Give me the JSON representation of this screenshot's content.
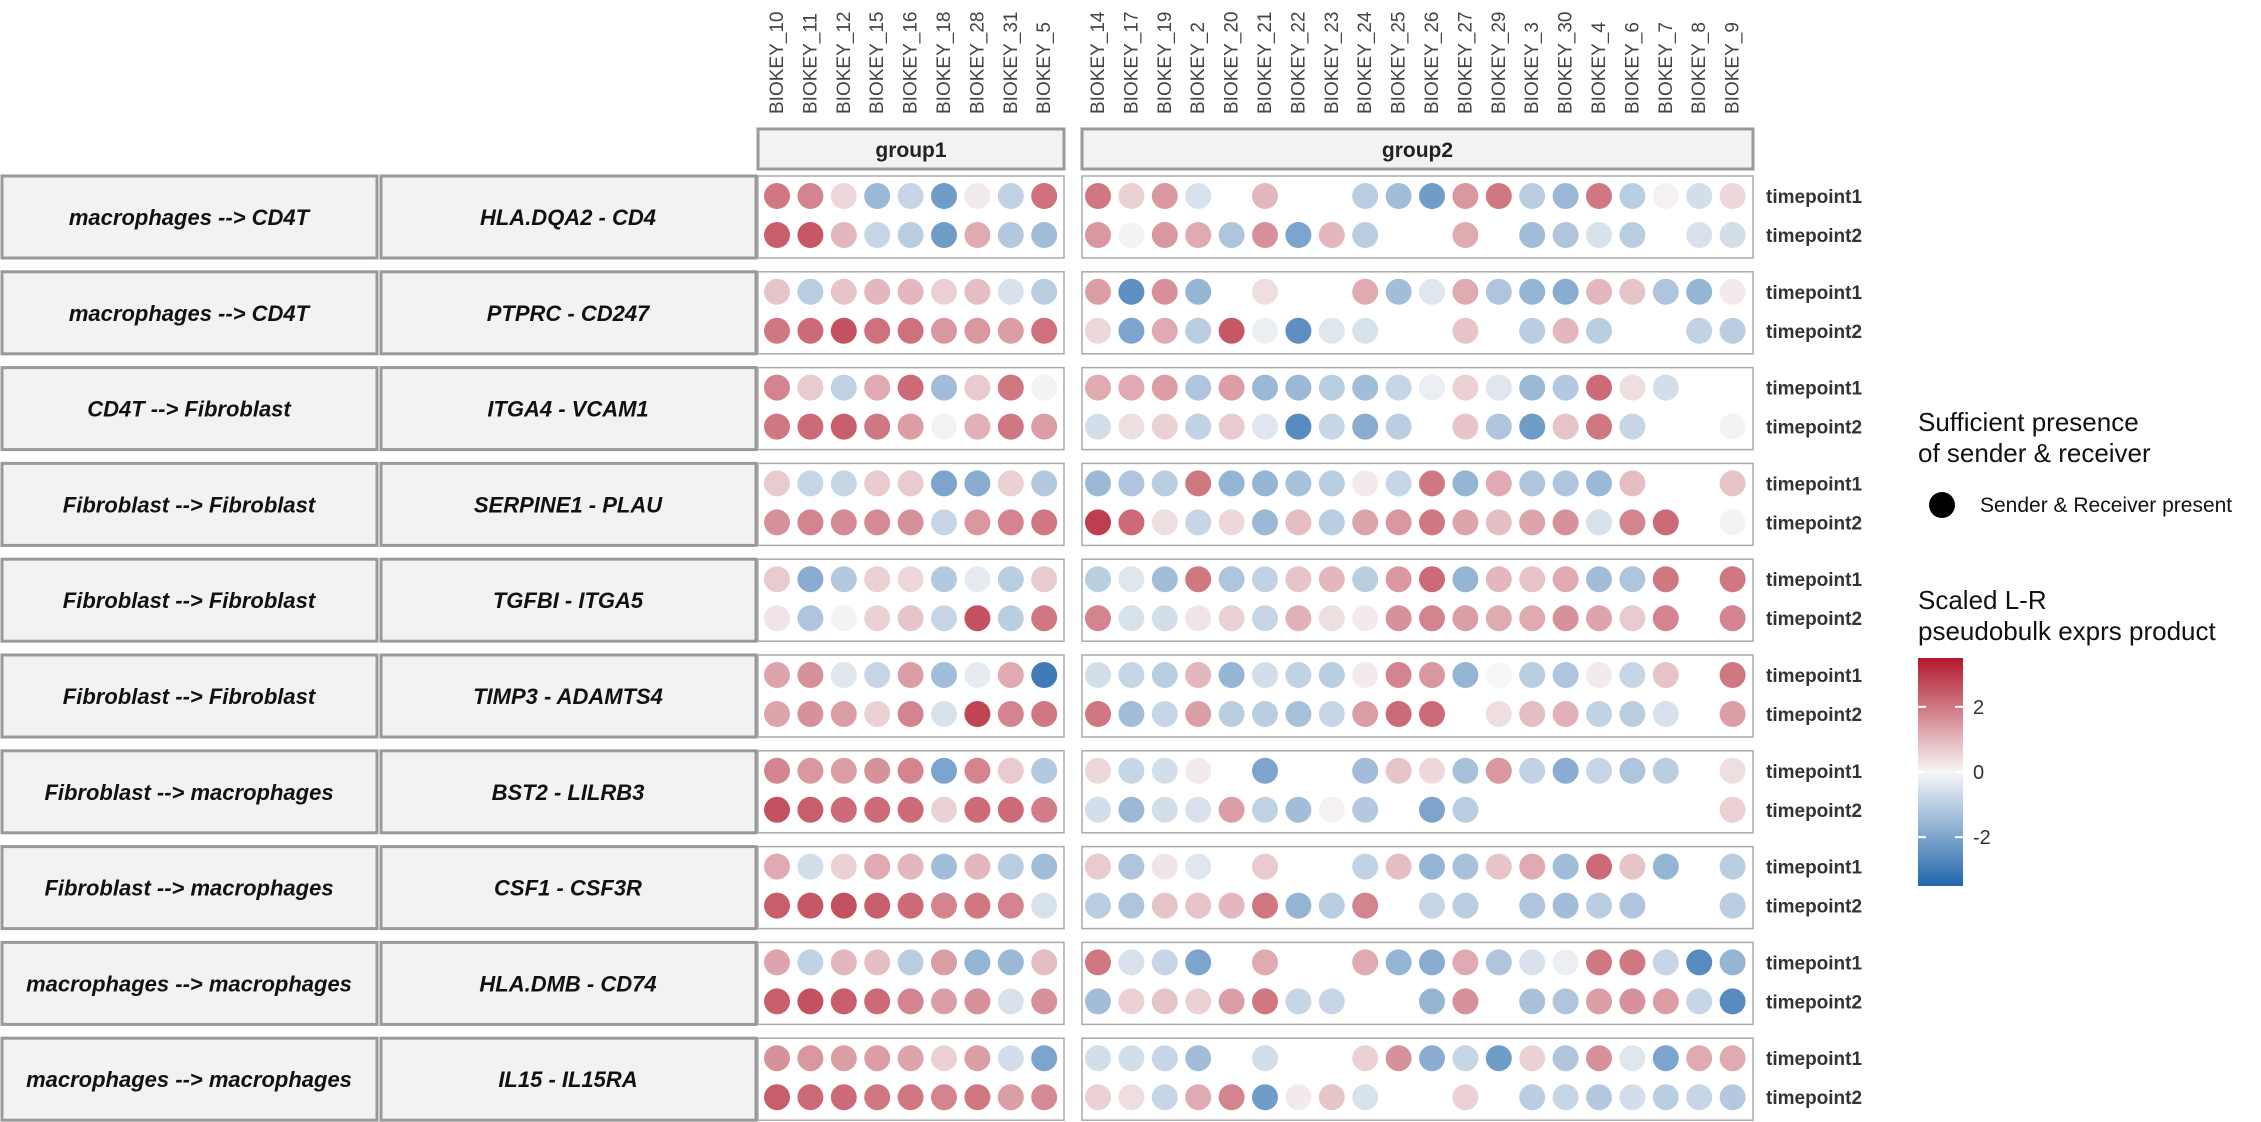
{
  "chart_data": {
    "type": "dotplot",
    "value_scale": "Scaled L-R pseudobulk exprs product (z-score)",
    "color_scale": {
      "low": "#2166ac",
      "mid": "#f7f7f7",
      "high": "#b2182b",
      "limits": [
        -3.5,
        3.5
      ],
      "ticks": [
        2,
        0,
        -2
      ]
    },
    "groups": [
      {
        "name": "group1",
        "samples": [
          "BIOKEY_10",
          "BIOKEY_11",
          "BIOKEY_12",
          "BIOKEY_15",
          "BIOKEY_16",
          "BIOKEY_18",
          "BIOKEY_28",
          "BIOKEY_31",
          "BIOKEY_5"
        ]
      },
      {
        "name": "group2",
        "samples": [
          "BIOKEY_14",
          "BIOKEY_17",
          "BIOKEY_19",
          "BIOKEY_2",
          "BIOKEY_20",
          "BIOKEY_21",
          "BIOKEY_22",
          "BIOKEY_23",
          "BIOKEY_24",
          "BIOKEY_25",
          "BIOKEY_26",
          "BIOKEY_27",
          "BIOKEY_29",
          "BIOKEY_3",
          "BIOKEY_30",
          "BIOKEY_4",
          "BIOKEY_6",
          "BIOKEY_7",
          "BIOKEY_8",
          "BIOKEY_9"
        ]
      }
    ],
    "timepoints": [
      "timepoint1",
      "timepoint2"
    ],
    "legend": {
      "presence_title_line1": "Sufficient presence",
      "presence_title_line2": "of sender & receiver",
      "presence_item": "Sender & Receiver present",
      "color_title_line1": "Scaled L-R",
      "color_title_line2": "pseudobulk exprs product",
      "placement": "right"
    },
    "rows": [
      {
        "sender_receiver": "macrophages --> CD4T",
        "pair": "HLA.DQA2 - CD4",
        "values": [
          [
            2.0,
            1.8,
            0.5,
            -1.5,
            -0.8,
            -2.2,
            0.2,
            -0.9,
            2.1,
            2.0,
            0.6,
            1.5,
            -0.5,
            null,
            1.0,
            null,
            null,
            -1.0,
            -1.4,
            -2.2,
            1.5,
            2.0,
            -1.0,
            -1.5,
            2.0,
            -1.0,
            0.1,
            -0.6,
            0.5
          ],
          [
            2.4,
            2.5,
            1.0,
            -0.8,
            -1.0,
            -2.2,
            1.2,
            -1.1,
            -1.4,
            1.5,
            -0.1,
            1.5,
            1.2,
            -1.2,
            1.6,
            -2.0,
            1.0,
            -1.0,
            null,
            null,
            1.2,
            null,
            -1.4,
            -1.2,
            -0.5,
            -1.0,
            null,
            -0.5,
            -0.6
          ]
        ]
      },
      {
        "sender_receiver": "macrophages --> CD4T",
        "pair": "PTPRC - CD247",
        "values": [
          [
            0.8,
            -1.0,
            0.8,
            1.0,
            1.0,
            0.6,
            0.9,
            -0.5,
            -1.0,
            1.4,
            -2.5,
            1.6,
            -1.6,
            null,
            0.4,
            null,
            null,
            1.2,
            -1.4,
            -0.4,
            1.2,
            -1.2,
            -1.6,
            -1.8,
            1.0,
            0.8,
            -1.2,
            -1.6,
            0.2
          ],
          [
            2.0,
            2.2,
            2.6,
            2.1,
            2.1,
            1.5,
            1.5,
            1.4,
            2.1,
            0.5,
            -2.0,
            1.2,
            -1.0,
            2.5,
            -0.2,
            -2.5,
            -0.4,
            -0.5,
            null,
            null,
            0.8,
            null,
            -1.0,
            1.0,
            -1.0,
            null,
            null,
            -0.9,
            -1.0
          ]
        ]
      },
      {
        "sender_receiver": "CD4T --> Fibroblast",
        "pair": "ITGA4 - VCAM1",
        "values": [
          [
            1.8,
            0.7,
            -0.9,
            1.2,
            2.2,
            -1.4,
            0.7,
            2.0,
            -0.1,
            1.2,
            1.2,
            1.4,
            -1.2,
            1.4,
            -1.5,
            -1.5,
            -1.0,
            -1.4,
            -0.8,
            -0.2,
            0.6,
            -0.4,
            -1.5,
            -1.1,
            2.2,
            0.4,
            -0.6,
            null,
            null
          ],
          [
            2.0,
            2.2,
            2.4,
            2.0,
            1.4,
            -0.1,
            1.1,
            2.0,
            1.4,
            -0.6,
            0.4,
            0.6,
            -0.9,
            0.7,
            -0.4,
            -2.6,
            -0.8,
            -1.8,
            -1.0,
            null,
            0.8,
            -1.2,
            -2.2,
            0.8,
            2.0,
            -0.8,
            null,
            null,
            -0.1
          ]
        ]
      },
      {
        "sender_receiver": "Fibroblast --> Fibroblast",
        "pair": "SERPINE1 - PLAU",
        "values": [
          [
            0.7,
            -0.8,
            -0.8,
            0.7,
            0.7,
            -2.0,
            -1.8,
            0.6,
            -1.1,
            -1.5,
            -1.2,
            -1.0,
            2.0,
            -1.6,
            -1.6,
            -1.3,
            -1.0,
            0.2,
            -0.8,
            2.0,
            -1.6,
            1.2,
            -1.2,
            -1.2,
            -1.5,
            0.9,
            null,
            null,
            0.8
          ],
          [
            1.6,
            1.8,
            1.7,
            1.7,
            1.6,
            -0.8,
            1.5,
            1.8,
            2.0,
            2.9,
            2.2,
            0.4,
            -0.8,
            0.5,
            -1.5,
            0.9,
            -1.0,
            1.3,
            1.5,
            2.0,
            1.3,
            0.9,
            1.3,
            1.6,
            -0.5,
            1.8,
            2.2,
            null,
            -0.1
          ]
        ]
      },
      {
        "sender_receiver": "Fibroblast --> Fibroblast",
        "pair": "TGFBI - ITGA5",
        "values": [
          [
            0.7,
            -1.8,
            -1.1,
            0.6,
            0.5,
            -1.1,
            -0.3,
            -1.0,
            0.7,
            -1.0,
            -0.4,
            -1.4,
            2.0,
            -1.2,
            -0.9,
            0.8,
            1.0,
            -1.0,
            1.5,
            2.2,
            -1.6,
            1.0,
            0.8,
            1.2,
            -1.4,
            -1.2,
            2.0,
            null,
            2.0
          ],
          [
            0.3,
            -1.2,
            -0.1,
            0.6,
            0.8,
            -0.8,
            2.6,
            -1.0,
            2.0,
            1.8,
            -0.5,
            -0.6,
            0.3,
            0.6,
            -0.8,
            1.1,
            0.4,
            0.2,
            1.6,
            1.8,
            1.4,
            1.2,
            1.2,
            1.6,
            1.3,
            0.7,
            1.8,
            null,
            1.8
          ]
        ]
      },
      {
        "sender_receiver": "Fibroblast --> Fibroblast",
        "pair": "TIMP3 - ADAMTS4",
        "values": [
          [
            1.3,
            1.6,
            -0.4,
            -0.8,
            1.4,
            -1.4,
            -0.3,
            1.2,
            -3.0,
            -0.6,
            -0.8,
            -1.0,
            1.0,
            -1.6,
            -0.6,
            -0.9,
            -1.0,
            0.2,
            1.8,
            1.5,
            -1.6,
            0.0,
            -1.0,
            -1.2,
            0.2,
            -0.8,
            0.8,
            null,
            2.0
          ],
          [
            1.3,
            1.6,
            1.4,
            0.6,
            1.8,
            -0.5,
            2.8,
            1.8,
            2.0,
            2.0,
            -1.4,
            -0.8,
            1.4,
            -1.0,
            -1.0,
            -1.3,
            -0.8,
            1.4,
            2.2,
            2.2,
            null,
            0.4,
            0.9,
            1.1,
            -0.9,
            -1.0,
            -0.5,
            null,
            1.4
          ]
        ]
      },
      {
        "sender_receiver": "Fibroblast --> macrophages",
        "pair": "BST2 - LILRB3",
        "values": [
          [
            1.8,
            1.5,
            1.4,
            1.6,
            1.8,
            -2.0,
            1.8,
            0.7,
            -1.1,
            0.5,
            -0.8,
            -0.6,
            0.2,
            null,
            -2.0,
            null,
            null,
            -1.4,
            0.8,
            0.5,
            -1.3,
            1.5,
            -0.9,
            -1.8,
            -0.8,
            -1.2,
            -1.0,
            null,
            0.4
          ],
          [
            2.6,
            2.4,
            2.2,
            2.2,
            2.2,
            0.6,
            2.2,
            2.2,
            1.9,
            -0.6,
            -1.5,
            -0.6,
            -0.5,
            1.4,
            -0.9,
            -1.4,
            0.1,
            -1.1,
            null,
            -2.0,
            -1.0,
            null,
            null,
            null,
            null,
            null,
            null,
            null,
            0.6
          ]
        ]
      },
      {
        "sender_receiver": "Fibroblast --> macrophages",
        "pair": "CSF1 - CSF3R",
        "values": [
          [
            1.2,
            -0.6,
            0.6,
            1.2,
            1.0,
            -1.4,
            1.0,
            -1.0,
            -1.4,
            0.7,
            -1.2,
            0.3,
            -0.4,
            null,
            0.7,
            null,
            null,
            -0.9,
            0.9,
            -1.6,
            -1.3,
            0.8,
            1.2,
            -1.4,
            2.2,
            0.8,
            -1.6,
            null,
            -1.0
          ],
          [
            2.4,
            2.5,
            2.6,
            2.4,
            2.2,
            1.8,
            2.0,
            1.8,
            -0.5,
            -1.0,
            -1.2,
            0.8,
            0.8,
            1.0,
            2.0,
            -1.6,
            -1.0,
            1.8,
            null,
            -0.8,
            -1.0,
            null,
            -1.2,
            -1.4,
            -1.0,
            -1.2,
            null,
            null,
            -1.0
          ]
        ]
      },
      {
        "sender_receiver": "macrophages --> macrophages",
        "pair": "HLA.DMB - CD74",
        "values": [
          [
            1.3,
            -0.9,
            1.0,
            0.9,
            -1.0,
            1.4,
            -1.6,
            -1.5,
            0.9,
            2.0,
            -0.5,
            -0.8,
            -2.0,
            null,
            1.2,
            null,
            null,
            1.2,
            -1.6,
            -1.8,
            1.2,
            -1.2,
            -0.5,
            -0.2,
            2.0,
            2.0,
            -0.8,
            -2.6,
            -1.6
          ],
          [
            2.4,
            2.6,
            2.4,
            2.2,
            1.8,
            1.4,
            1.6,
            -0.5,
            1.6,
            -1.4,
            0.6,
            0.8,
            0.6,
            1.4,
            2.0,
            -0.8,
            -0.8,
            null,
            null,
            -1.6,
            1.6,
            null,
            -1.3,
            -1.2,
            1.4,
            1.6,
            1.4,
            -0.8,
            -2.6
          ]
        ]
      },
      {
        "sender_receiver": "macrophages --> macrophages",
        "pair": "IL15 - IL15RA",
        "values": [
          [
            1.6,
            1.5,
            1.4,
            1.4,
            1.3,
            0.6,
            1.4,
            -0.6,
            -2.0,
            -0.6,
            -0.6,
            -0.8,
            -1.4,
            null,
            -0.6,
            null,
            null,
            0.6,
            1.6,
            -1.8,
            -0.8,
            -2.2,
            0.6,
            -1.2,
            1.6,
            -0.4,
            -2.0,
            1.2,
            1.2
          ],
          [
            2.4,
            2.2,
            2.2,
            2.0,
            2.0,
            1.8,
            2.0,
            1.4,
            1.7,
            0.6,
            0.4,
            -0.8,
            1.2,
            1.8,
            -2.2,
            0.2,
            0.8,
            -0.5,
            null,
            null,
            0.6,
            null,
            -1.0,
            -0.8,
            -1.1,
            -0.6,
            -1.0,
            -0.8,
            -1.1
          ]
        ]
      }
    ]
  }
}
